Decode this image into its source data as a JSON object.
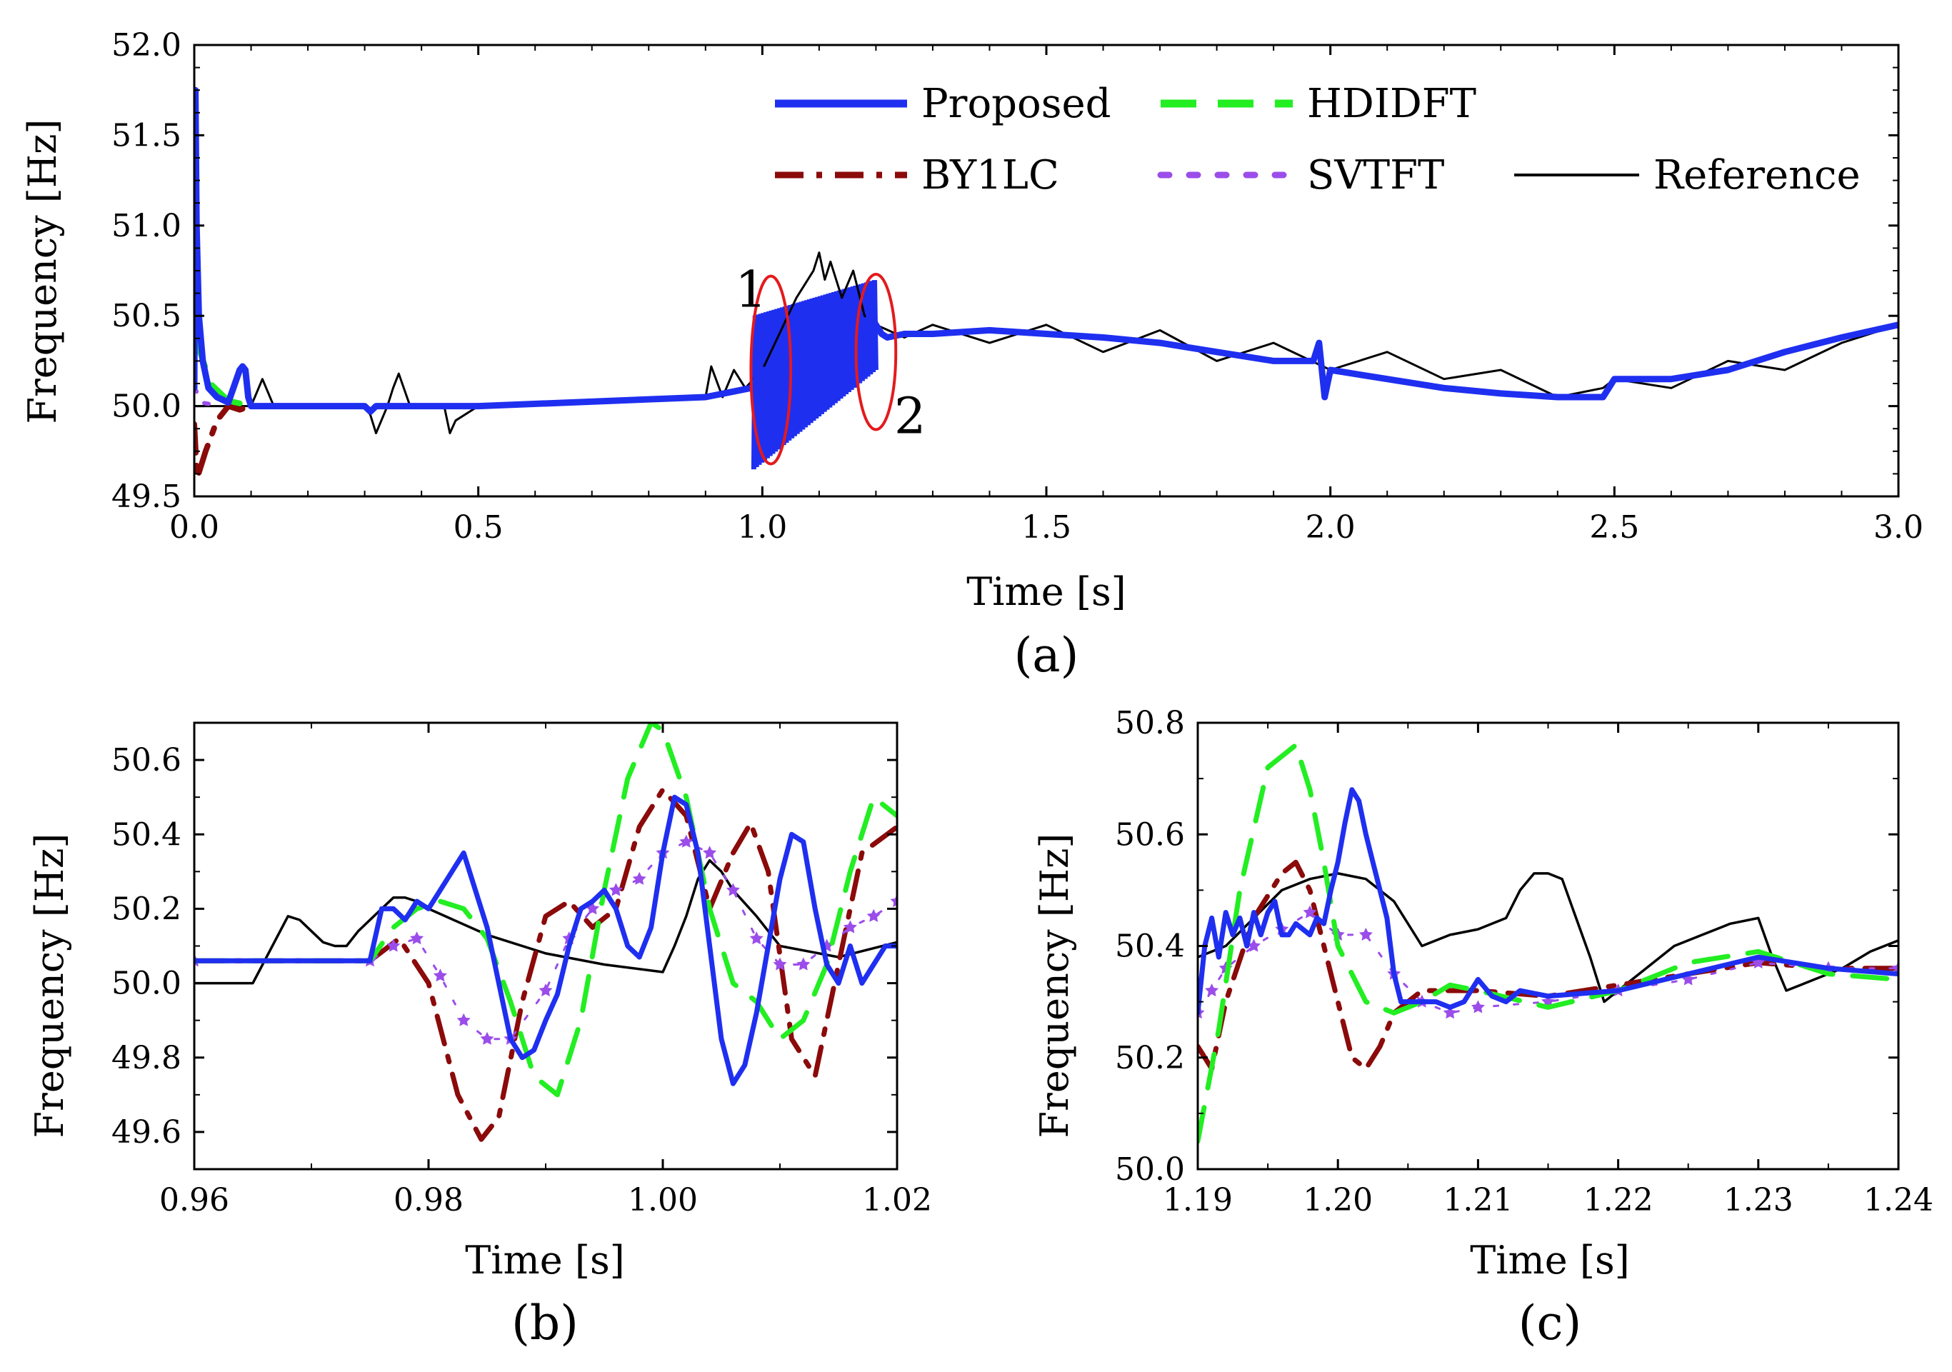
{
  "figure": {
    "legend": [
      {
        "name": "Proposed",
        "color": "#1f2ff0",
        "style": "solid-thick"
      },
      {
        "name": "HDIDFT",
        "color": "#22ee22",
        "style": "dashed"
      },
      {
        "name": "BY1LC",
        "color": "#8b0a0a",
        "style": "dashdot"
      },
      {
        "name": "SVTFT",
        "color": "#9b4dea",
        "style": "star-dotted"
      },
      {
        "name": "Reference",
        "color": "#000000",
        "style": "solid-thin"
      }
    ]
  },
  "chart_data": [
    {
      "id": "a",
      "type": "line",
      "caption": "(a)",
      "xlabel": "Time [s]",
      "ylabel": "Frequency [Hz]",
      "xlim": [
        0.0,
        3.0
      ],
      "ylim": [
        49.5,
        52.0
      ],
      "xticks": [
        "0.0",
        "0.5",
        "1.0",
        "1.5",
        "2.0",
        "2.5",
        "3.0"
      ],
      "yticks": [
        "49.5",
        "50.0",
        "50.5",
        "51.0",
        "51.5",
        "52.0"
      ],
      "annotations": [
        {
          "text": "1",
          "x": 0.98,
          "y": 50.55,
          "ellipse": {
            "cx": 1.015,
            "cy": 50.2,
            "rx": 0.035,
            "ry": 0.52
          }
        },
        {
          "text": "2",
          "x": 1.26,
          "y": 49.85,
          "ellipse": {
            "cx": 1.2,
            "cy": 50.3,
            "rx": 0.035,
            "ry": 0.43
          }
        }
      ],
      "series": [
        {
          "name": "Reference",
          "x": [
            0.0,
            0.1,
            0.12,
            0.14,
            0.16,
            0.3,
            0.31,
            0.32,
            0.34,
            0.35,
            0.36,
            0.38,
            0.44,
            0.45,
            0.46,
            0.5,
            0.9,
            0.91,
            0.93,
            0.95,
            0.97,
            1.0,
            1.03,
            1.06,
            1.09,
            1.1,
            1.11,
            1.12,
            1.14,
            1.16,
            1.18,
            1.2,
            1.25,
            1.3,
            1.4,
            1.5,
            1.6,
            1.7,
            1.8,
            1.9,
            2.0,
            2.1,
            2.2,
            2.3,
            2.4,
            2.48,
            2.5,
            2.6,
            2.7,
            2.8,
            2.9,
            3.0
          ],
          "y": [
            50.0,
            50.0,
            50.15,
            50.0,
            50.0,
            50.0,
            49.95,
            49.85,
            50.0,
            50.1,
            50.18,
            50.0,
            50.0,
            49.85,
            49.92,
            50.0,
            50.05,
            50.22,
            50.05,
            50.2,
            50.1,
            50.2,
            50.4,
            50.6,
            50.75,
            50.85,
            50.7,
            50.8,
            50.6,
            50.75,
            50.5,
            50.45,
            50.38,
            50.45,
            50.35,
            50.45,
            50.3,
            50.42,
            50.25,
            50.35,
            50.2,
            50.3,
            50.15,
            50.2,
            50.05,
            50.1,
            50.15,
            50.1,
            50.25,
            50.2,
            50.35,
            50.45
          ]
        },
        {
          "name": "BY1LC",
          "x": [
            0.0,
            0.005,
            0.02,
            0.04,
            0.06,
            0.08,
            0.1
          ],
          "y": [
            49.9,
            49.6,
            49.75,
            49.92,
            50.0,
            49.98,
            50.0
          ]
        },
        {
          "name": "SVTFT",
          "x": [
            0.0,
            0.004,
            0.01,
            0.05
          ],
          "y": [
            50.1,
            50.08,
            50.02,
            50.0
          ]
        },
        {
          "name": "HDIDFT",
          "x": [
            0.0,
            0.01,
            0.03,
            0.06,
            0.1,
            0.2
          ],
          "y": [
            50.4,
            50.3,
            50.12,
            50.03,
            50.0,
            50.0
          ]
        },
        {
          "name": "Proposed",
          "x": [
            0.0,
            0.002,
            0.004,
            0.008,
            0.015,
            0.025,
            0.04,
            0.06,
            0.08,
            0.085,
            0.09,
            0.095,
            0.1,
            0.11,
            0.2,
            0.3,
            0.31,
            0.32,
            0.33,
            0.5,
            0.9,
            0.98,
            1.0,
            1.02,
            1.04,
            1.06,
            1.08,
            1.1,
            1.12,
            1.14,
            1.16,
            1.18,
            1.19,
            1.2,
            1.21,
            1.22,
            1.25,
            1.3,
            1.4,
            1.5,
            1.6,
            1.7,
            1.8,
            1.9,
            1.97,
            1.98,
            1.99,
            2.0,
            2.1,
            2.2,
            2.3,
            2.4,
            2.48,
            2.49,
            2.5,
            2.6,
            2.7,
            2.8,
            2.9,
            3.0
          ],
          "y": [
            50.1,
            51.75,
            51.0,
            50.5,
            50.25,
            50.1,
            50.05,
            50.02,
            50.2,
            50.22,
            50.2,
            50.05,
            50.0,
            50.0,
            50.0,
            50.0,
            49.97,
            50.0,
            50.0,
            50.0,
            50.05,
            50.1,
            50.2,
            50.2,
            50.25,
            50.3,
            50.3,
            50.35,
            50.35,
            50.4,
            50.4,
            50.45,
            50.5,
            50.45,
            50.4,
            50.38,
            50.4,
            50.4,
            50.42,
            50.4,
            50.38,
            50.35,
            50.3,
            50.25,
            50.25,
            50.35,
            50.05,
            50.2,
            50.15,
            50.1,
            50.07,
            50.05,
            50.05,
            50.1,
            50.15,
            50.15,
            50.2,
            50.3,
            50.38,
            50.45
          ]
        }
      ],
      "band": {
        "series": "Proposed",
        "x0": 0.985,
        "x1": 1.2,
        "low": [
          49.65,
          50.2
        ],
        "high": [
          50.5,
          50.7
        ]
      }
    },
    {
      "id": "b",
      "type": "line",
      "caption": "(b)",
      "xlabel": "Time [s]",
      "ylabel": "Frequency [Hz]",
      "xlim": [
        0.96,
        1.02
      ],
      "ylim": [
        49.5,
        50.7
      ],
      "xticks": [
        "0.96",
        "0.98",
        "1.00",
        "1.02"
      ],
      "yticks": [
        "49.6",
        "49.8",
        "50.0",
        "50.2",
        "50.4",
        "50.6"
      ],
      "series": [
        {
          "name": "Reference",
          "x": [
            0.96,
            0.965,
            0.966,
            0.967,
            0.968,
            0.969,
            0.97,
            0.971,
            0.972,
            0.973,
            0.974,
            0.975,
            0.976,
            0.977,
            0.978,
            0.979,
            0.98,
            0.985,
            0.99,
            0.995,
            1.0,
            1.001,
            1.002,
            1.003,
            1.004,
            1.005,
            1.006,
            1.008,
            1.01,
            1.015,
            1.02
          ],
          "y": [
            50.0,
            50.0,
            50.06,
            50.12,
            50.18,
            50.17,
            50.14,
            50.11,
            50.1,
            50.1,
            50.14,
            50.17,
            50.2,
            50.23,
            50.23,
            50.22,
            50.2,
            50.13,
            50.08,
            50.05,
            50.03,
            50.1,
            50.18,
            50.28,
            50.33,
            50.3,
            50.25,
            50.18,
            50.1,
            50.07,
            50.11
          ]
        },
        {
          "name": "BY1LC",
          "x": [
            0.96,
            0.975,
            0.9775,
            0.98,
            0.9825,
            0.9845,
            0.986,
            0.988,
            0.99,
            0.992,
            0.994,
            0.996,
            0.998,
            1.0,
            1.002,
            1.004,
            1.006,
            1.0075,
            1.009,
            1.011,
            1.013,
            1.015,
            1.017,
            1.02
          ],
          "y": [
            50.06,
            50.06,
            50.12,
            50.0,
            49.7,
            49.58,
            49.64,
            49.95,
            50.18,
            50.22,
            50.15,
            50.2,
            50.42,
            50.52,
            50.45,
            50.2,
            50.35,
            50.43,
            50.3,
            49.85,
            49.75,
            50.05,
            50.35,
            50.42
          ]
        },
        {
          "name": "SVTFT",
          "x": [
            0.96,
            0.975,
            0.977,
            0.979,
            0.981,
            0.983,
            0.985,
            0.987,
            0.99,
            0.992,
            0.994,
            0.996,
            0.998,
            1.0,
            1.002,
            1.004,
            1.006,
            1.008,
            1.01,
            1.012,
            1.014,
            1.016,
            1.018,
            1.02
          ],
          "y": [
            50.06,
            50.06,
            50.1,
            50.12,
            50.02,
            49.9,
            49.85,
            49.85,
            49.98,
            50.12,
            50.2,
            50.25,
            50.28,
            50.35,
            50.38,
            50.35,
            50.25,
            50.12,
            50.05,
            50.05,
            50.1,
            50.15,
            50.18,
            50.22
          ]
        },
        {
          "name": "HDIDFT",
          "x": [
            0.96,
            0.975,
            0.977,
            0.979,
            0.981,
            0.983,
            0.985,
            0.987,
            0.989,
            0.991,
            0.993,
            0.995,
            0.997,
            0.999,
            1.0,
            1.002,
            1.004,
            1.006,
            1.008,
            1.01,
            1.012,
            1.014,
            1.016,
            1.018,
            1.02
          ],
          "y": [
            50.06,
            50.06,
            50.15,
            50.2,
            50.22,
            50.2,
            50.12,
            49.95,
            49.75,
            49.7,
            49.9,
            50.25,
            50.55,
            50.7,
            50.68,
            50.5,
            50.2,
            50.0,
            49.95,
            49.85,
            49.9,
            50.05,
            50.3,
            50.5,
            50.45
          ]
        },
        {
          "name": "Proposed",
          "x": [
            0.96,
            0.975,
            0.976,
            0.977,
            0.978,
            0.979,
            0.98,
            0.981,
            0.982,
            0.983,
            0.984,
            0.985,
            0.986,
            0.987,
            0.988,
            0.989,
            0.99,
            0.991,
            0.992,
            0.993,
            0.994,
            0.995,
            0.996,
            0.997,
            0.998,
            0.999,
            1.0,
            1.001,
            1.002,
            1.003,
            1.004,
            1.005,
            1.006,
            1.007,
            1.008,
            1.009,
            1.01,
            1.011,
            1.012,
            1.013,
            1.014,
            1.015,
            1.016,
            1.017,
            1.018,
            1.019,
            1.02
          ],
          "y": [
            50.06,
            50.06,
            50.2,
            50.2,
            50.17,
            50.22,
            50.2,
            50.25,
            50.3,
            50.35,
            50.25,
            50.15,
            50.0,
            49.85,
            49.8,
            49.82,
            49.9,
            49.97,
            50.1,
            50.2,
            50.22,
            50.25,
            50.2,
            50.1,
            50.07,
            50.15,
            50.35,
            50.5,
            50.48,
            50.35,
            50.1,
            49.85,
            49.73,
            49.78,
            49.92,
            50.1,
            50.28,
            50.4,
            50.38,
            50.2,
            50.05,
            50.0,
            50.1,
            50.0,
            50.05,
            50.1,
            50.1
          ]
        }
      ]
    },
    {
      "id": "c",
      "type": "line",
      "caption": "(c)",
      "xlabel": "Time [s]",
      "ylabel": "Frequency [Hz]",
      "xlim": [
        1.19,
        1.24
      ],
      "ylim": [
        50.0,
        50.8
      ],
      "xticks": [
        "1.19",
        "1.20",
        "1.21",
        "1.22",
        "1.23",
        "1.24"
      ],
      "yticks": [
        "50.0",
        "50.2",
        "50.4",
        "50.6",
        "50.8"
      ],
      "series": [
        {
          "name": "Reference",
          "x": [
            1.19,
            1.192,
            1.194,
            1.196,
            1.198,
            1.2,
            1.202,
            1.204,
            1.206,
            1.208,
            1.21,
            1.212,
            1.213,
            1.214,
            1.215,
            1.216,
            1.217,
            1.218,
            1.219,
            1.22,
            1.222,
            1.224,
            1.226,
            1.228,
            1.23,
            1.231,
            1.232,
            1.233,
            1.234,
            1.236,
            1.238,
            1.24
          ],
          "y": [
            50.38,
            50.4,
            50.45,
            50.5,
            50.52,
            50.53,
            50.52,
            50.48,
            50.4,
            50.42,
            50.43,
            50.45,
            50.5,
            50.53,
            50.53,
            50.52,
            50.45,
            50.38,
            50.3,
            50.32,
            50.36,
            50.4,
            50.42,
            50.44,
            50.45,
            50.38,
            50.32,
            50.33,
            50.34,
            50.36,
            50.39,
            50.41
          ]
        },
        {
          "name": "BY1LC",
          "x": [
            1.19,
            1.191,
            1.192,
            1.194,
            1.196,
            1.197,
            1.198,
            1.2,
            1.201,
            1.202,
            1.203,
            1.204,
            1.206,
            1.21,
            1.215,
            1.22,
            1.225,
            1.23,
            1.235,
            1.24
          ],
          "y": [
            50.22,
            50.18,
            50.3,
            50.45,
            50.53,
            50.55,
            50.5,
            50.3,
            50.2,
            50.18,
            50.22,
            50.28,
            50.32,
            50.32,
            50.31,
            50.33,
            50.35,
            50.37,
            50.36,
            50.36
          ]
        },
        {
          "name": "SVTFT",
          "x": [
            1.19,
            1.191,
            1.192,
            1.194,
            1.196,
            1.198,
            1.2,
            1.202,
            1.204,
            1.206,
            1.208,
            1.21,
            1.215,
            1.22,
            1.225,
            1.23,
            1.235,
            1.24
          ],
          "y": [
            50.28,
            50.32,
            50.36,
            50.4,
            50.43,
            50.46,
            50.42,
            50.42,
            50.35,
            50.3,
            50.28,
            50.29,
            50.3,
            50.32,
            50.34,
            50.37,
            50.36,
            50.36
          ]
        },
        {
          "name": "HDIDFT",
          "x": [
            1.19,
            1.1915,
            1.193,
            1.195,
            1.197,
            1.198,
            1.199,
            1.2,
            1.202,
            1.204,
            1.206,
            1.208,
            1.21,
            1.215,
            1.22,
            1.225,
            1.23,
            1.235,
            1.24
          ],
          "y": [
            50.05,
            50.25,
            50.5,
            50.72,
            50.76,
            50.68,
            50.55,
            50.4,
            50.3,
            50.28,
            50.3,
            50.33,
            50.32,
            50.29,
            50.32,
            50.37,
            50.39,
            50.35,
            50.34
          ]
        },
        {
          "name": "Proposed",
          "x": [
            1.19,
            1.1905,
            1.191,
            1.1915,
            1.192,
            1.1925,
            1.193,
            1.1935,
            1.194,
            1.1945,
            1.195,
            1.1955,
            1.196,
            1.1965,
            1.197,
            1.1975,
            1.198,
            1.1985,
            1.199,
            1.1995,
            1.2,
            1.2005,
            1.201,
            1.2015,
            1.202,
            1.2025,
            1.203,
            1.2035,
            1.204,
            1.2045,
            1.205,
            1.206,
            1.207,
            1.208,
            1.209,
            1.21,
            1.211,
            1.212,
            1.213,
            1.215,
            1.22,
            1.225,
            1.23,
            1.235,
            1.24
          ],
          "y": [
            50.28,
            50.4,
            50.45,
            50.38,
            50.46,
            50.42,
            50.45,
            50.4,
            50.46,
            50.42,
            50.46,
            50.48,
            50.42,
            50.42,
            50.44,
            50.43,
            50.42,
            50.45,
            50.44,
            50.5,
            50.55,
            50.62,
            50.68,
            50.66,
            50.6,
            50.55,
            50.5,
            50.45,
            50.35,
            50.3,
            50.3,
            50.3,
            50.3,
            50.29,
            50.3,
            50.34,
            50.31,
            50.3,
            50.32,
            50.31,
            50.32,
            50.35,
            50.38,
            50.36,
            50.35
          ]
        }
      ]
    }
  ]
}
